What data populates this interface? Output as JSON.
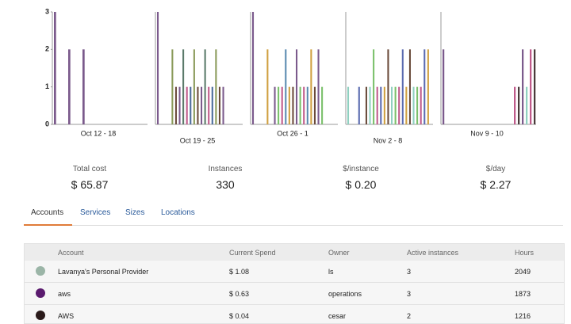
{
  "chart_data": [
    {
      "type": "bar",
      "xlabel": "Oct 12 - 18",
      "categories": [
        null,
        null,
        null,
        null,
        null,
        null,
        null,
        null,
        null,
        null,
        null,
        null,
        null,
        null,
        null,
        null,
        null,
        null,
        null,
        null
      ],
      "values": [
        3,
        0,
        0,
        2,
        0,
        0,
        2,
        0,
        0,
        0,
        0,
        0,
        0,
        0,
        0,
        0,
        0,
        0,
        0,
        0
      ],
      "colors": [
        "#7b5a8c",
        "#8e7aa8",
        "#a08fb5"
      ],
      "ylim": [
        0,
        3
      ],
      "yticks": [
        0,
        1,
        2,
        3
      ]
    },
    {
      "type": "bar",
      "xlabel": "Oct 19 - 25",
      "categories": [
        null,
        null,
        null,
        null,
        null,
        null,
        null,
        null,
        null,
        null,
        null,
        null,
        null,
        null,
        null,
        null,
        null,
        null,
        null,
        null,
        null,
        null,
        null,
        null
      ],
      "values": [
        3,
        0,
        0,
        0,
        2,
        1,
        1,
        2,
        1,
        1,
        2,
        1,
        1,
        2,
        1,
        1,
        2,
        1,
        1,
        0,
        0,
        0,
        0,
        0
      ],
      "colors": [
        "#7b5a8c",
        "#5a7a6a",
        "#c05a8a",
        "#4a6a9a",
        "#8a9a5a",
        "#6a4a3a"
      ],
      "ylim": [
        0,
        3
      ]
    },
    {
      "type": "bar",
      "xlabel": "Oct 26 - 1",
      "categories": [
        null,
        null,
        null,
        null,
        null,
        null,
        null,
        null,
        null,
        null,
        null,
        null,
        null,
        null,
        null,
        null,
        null,
        null,
        null,
        null,
        null,
        null,
        null,
        null
      ],
      "values": [
        3,
        0,
        0,
        0,
        2,
        0,
        1,
        1,
        1,
        2,
        1,
        1,
        2,
        1,
        1,
        1,
        2,
        1,
        2,
        1,
        0,
        0,
        0,
        0
      ],
      "colors": [
        "#7b5a8c",
        "#7ac06a",
        "#c05a8a",
        "#5a8ab0",
        "#d0a040",
        "#6a4a3a"
      ],
      "ylim": [
        0,
        3
      ]
    },
    {
      "type": "bar",
      "xlabel": "Nov 2 - 8",
      "categories": [
        null,
        null,
        null,
        null,
        null,
        null,
        null,
        null,
        null,
        null,
        null,
        null,
        null,
        null,
        null,
        null,
        null,
        null,
        null,
        null,
        null,
        null,
        null,
        null
      ],
      "values": [
        1,
        0,
        0,
        1,
        0,
        1,
        1,
        2,
        1,
        1,
        1,
        2,
        1,
        1,
        1,
        2,
        1,
        2,
        1,
        1,
        1,
        2,
        2,
        0
      ],
      "colors": [
        "#8fd0c0",
        "#7ac06a",
        "#c05a8a",
        "#5a6ab0",
        "#d0a040",
        "#6a4a3a"
      ],
      "ylim": [
        0,
        3
      ]
    },
    {
      "type": "bar",
      "xlabel": "Nov 9 - 10",
      "categories": [
        null,
        null,
        null,
        null,
        null,
        null,
        null,
        null,
        null,
        null,
        null,
        null,
        null,
        null,
        null,
        null,
        null,
        null,
        null,
        null,
        null,
        null,
        null,
        null
      ],
      "values": [
        2,
        0,
        0,
        0,
        0,
        0,
        0,
        0,
        0,
        0,
        0,
        0,
        0,
        0,
        0,
        0,
        0,
        0,
        1,
        1,
        2,
        1,
        2,
        2
      ],
      "colors": [
        "#7b5a8c",
        "#8fd0c0",
        "#c05a8a",
        "#4a3a3a"
      ],
      "ylim": [
        0,
        3
      ]
    }
  ],
  "stats": [
    {
      "label": "Total cost",
      "value": "$ 65.87"
    },
    {
      "label": "Instances",
      "value": "330"
    },
    {
      "label": "$/instance",
      "value": "$ 0.20"
    },
    {
      "label": "$/day",
      "value": "$ 2.27"
    }
  ],
  "tabs": [
    "Accounts",
    "Services",
    "Sizes",
    "Locations"
  ],
  "table": {
    "headers": [
      "Account",
      "Current Spend",
      "Owner",
      "Active instances",
      "Hours"
    ],
    "rows": [
      [
        "Lavanya's Personal Provider",
        "$ 1.08",
        "ls",
        3,
        2049
      ],
      [
        "aws",
        "$ 0.63",
        "operations",
        3,
        1873
      ],
      [
        "AWS",
        "$ 0.04",
        "cesar",
        2,
        1216
      ]
    ]
  }
}
